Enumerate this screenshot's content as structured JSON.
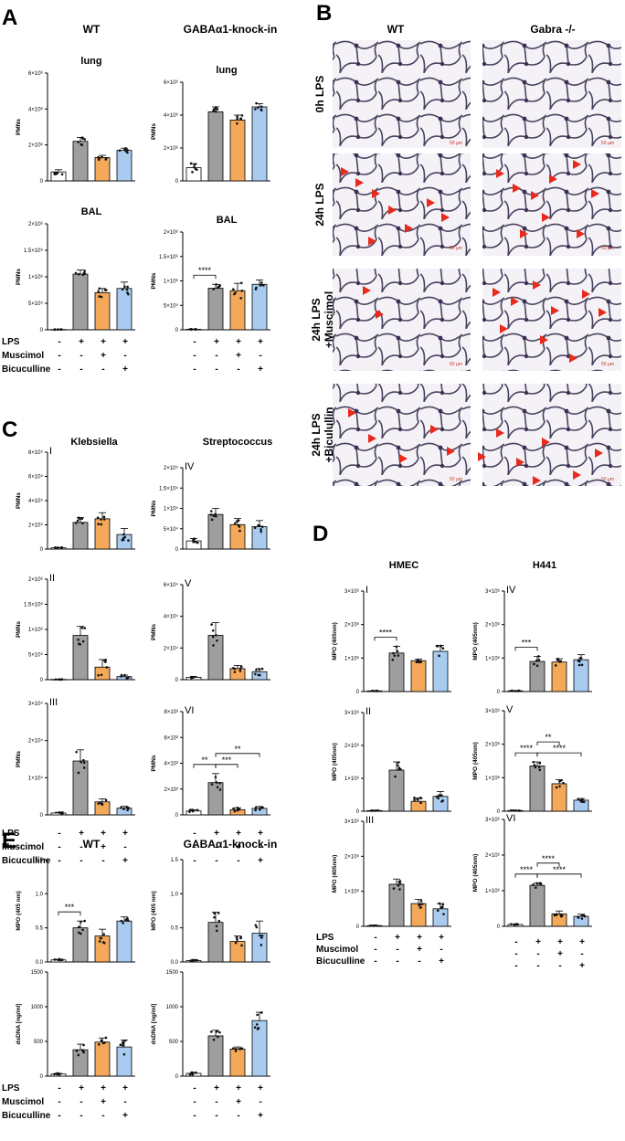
{
  "colors": {
    "white": "#ffffff",
    "gray": "#9e9e9e",
    "orange": "#f3a85a",
    "blue": "#a8cbef",
    "arrow": "#e8291c"
  },
  "panels": {
    "A": {
      "label": "A",
      "col_titles": [
        "WT",
        "GABAα1-knock-in"
      ]
    },
    "B": {
      "label": "B",
      "col_titles": [
        "WT",
        "Gabra -/-"
      ],
      "row_labels": [
        "0h LPS",
        "24h LPS",
        "24h LPS\n+Muscimol",
        "24h LPS\n+Biculullin"
      ],
      "scale_text": "50 µm"
    },
    "C": {
      "label": "C",
      "col_titles": [
        "Klebsiella",
        "Streptococcus"
      ]
    },
    "D": {
      "label": "D",
      "col_titles": [
        "HMEC",
        "H441"
      ]
    },
    "E": {
      "label": "E",
      "col_titles": [
        "WT",
        "GABAα1-knock-in"
      ]
    }
  },
  "treatment_table": {
    "row_labels": [
      "LPS",
      "Muscimol",
      "Bicuculline"
    ],
    "rows": [
      [
        "-",
        "+",
        "+",
        "+"
      ],
      [
        "-",
        "-",
        "+",
        "-"
      ],
      [
        "-",
        "-",
        "-",
        "+"
      ]
    ]
  },
  "chart_data": [
    {
      "id": "A-WT-lung",
      "type": "bar",
      "title": "lung",
      "ylabel": "PMNs",
      "ylim": [
        0,
        6000000
      ],
      "yticks": [
        "0",
        "2×10⁶",
        "4×10⁶",
        "6×10⁶"
      ],
      "values": [
        500000,
        2200000,
        1300000,
        1700000
      ],
      "errors": [
        120000,
        220000,
        120000,
        120000
      ],
      "sig": []
    },
    {
      "id": "A-KI-lung",
      "type": "bar",
      "title": "lung",
      "ylabel": "PMNs",
      "ylim": [
        0,
        6000000
      ],
      "yticks": [
        "0",
        "2×10⁶",
        "4×10⁶",
        "6×10⁶"
      ],
      "values": [
        800000,
        4200000,
        3700000,
        4500000
      ],
      "errors": [
        250000,
        300000,
        300000,
        200000
      ],
      "sig": []
    },
    {
      "id": "A-WT-BAL",
      "type": "bar",
      "title": "BAL",
      "ylabel": "PMNs",
      "ylim": [
        0,
        2000000
      ],
      "yticks": [
        "0",
        "5×10⁵",
        "1×10⁶",
        "1.5×10⁶",
        "2×10⁶"
      ],
      "values": [
        5000,
        1050000,
        700000,
        780000
      ],
      "errors": [
        3000,
        80000,
        80000,
        120000
      ],
      "sig": []
    },
    {
      "id": "A-KI-BAL",
      "type": "bar",
      "title": "BAL",
      "ylabel": "PMNs",
      "ylim": [
        0,
        2000000
      ],
      "yticks": [
        "0",
        "5×10⁵",
        "1×10⁶",
        "1.5×10⁶",
        "2×10⁶"
      ],
      "values": [
        10000,
        850000,
        800000,
        930000
      ],
      "errors": [
        5000,
        80000,
        150000,
        90000
      ],
      "sig": [
        {
          "a": 0,
          "b": 1,
          "label": "****",
          "level": 1
        }
      ]
    },
    {
      "id": "C-I",
      "type": "bar",
      "roman": "I",
      "ylabel": "PMNs",
      "ylim": [
        0,
        800000
      ],
      "yticks": [
        "0",
        "2×10⁵",
        "4×10⁵",
        "6×10⁵",
        "8×10⁵"
      ],
      "values": [
        10000,
        220000,
        250000,
        120000
      ],
      "errors": [
        4000,
        40000,
        50000,
        50000
      ],
      "sig": []
    },
    {
      "id": "C-IV",
      "type": "bar",
      "roman": "IV",
      "ylabel": "PMNs",
      "ylim": [
        0,
        200000
      ],
      "yticks": [
        "0",
        "5×10⁴",
        "1×10⁵",
        "1.5×10⁵",
        "2×10⁵"
      ],
      "values": [
        20000,
        85000,
        60000,
        55000
      ],
      "errors": [
        6000,
        15000,
        15000,
        15000
      ],
      "sig": []
    },
    {
      "id": "C-II",
      "type": "bar",
      "roman": "II",
      "ylabel": "PMNs",
      "ylim": [
        0,
        2000000
      ],
      "yticks": [
        "0",
        "5×10⁵",
        "1×10⁶",
        "1.5×10⁶",
        "2×10⁶"
      ],
      "values": [
        5000,
        880000,
        250000,
        60000
      ],
      "errors": [
        3000,
        180000,
        150000,
        30000
      ],
      "sig": []
    },
    {
      "id": "C-V",
      "type": "bar",
      "roman": "V",
      "ylabel": "PMNs",
      "ylim": [
        0,
        60000
      ],
      "yticks": [
        "0",
        "2×10⁴",
        "4×10⁴",
        "6×10⁴"
      ],
      "values": [
        1500,
        28000,
        7000,
        5000
      ],
      "errors": [
        500,
        8000,
        2000,
        2000
      ],
      "sig": []
    },
    {
      "id": "C-III",
      "type": "bar",
      "roman": "III",
      "ylabel": "PMNs",
      "ylim": [
        0,
        30000
      ],
      "yticks": [
        "0",
        "1×10⁴",
        "2×10⁴",
        "3×10⁴"
      ],
      "values": [
        500,
        14500,
        3500,
        1800
      ],
      "errors": [
        200,
        3000,
        800,
        500
      ],
      "sig": []
    },
    {
      "id": "C-VI",
      "type": "bar",
      "roman": "VI",
      "ylabel": "PMNs",
      "ylim": [
        0,
        8000
      ],
      "yticks": [
        "0",
        "2×10³",
        "4×10³",
        "6×10³",
        "8×10³"
      ],
      "values": [
        300,
        2500,
        400,
        500
      ],
      "errors": [
        100,
        700,
        150,
        150
      ],
      "sig": [
        {
          "a": 0,
          "b": 1,
          "label": "**",
          "level": 1
        },
        {
          "a": 1,
          "b": 2,
          "label": "***",
          "level": 1
        },
        {
          "a": 1,
          "b": 3,
          "label": "**",
          "level": 2
        }
      ]
    },
    {
      "id": "D-I",
      "type": "bar",
      "roman": "I",
      "ylabel": "MPO (405nm)",
      "ylim": [
        0,
        3000000
      ],
      "yticks": [
        "0",
        "1×10⁶",
        "2×10⁶",
        "3×10⁶"
      ],
      "values": [
        20000,
        1150000,
        920000,
        1200000
      ],
      "errors": [
        5000,
        200000,
        50000,
        180000
      ],
      "sig": [
        {
          "a": 0,
          "b": 1,
          "label": "****",
          "level": 1
        }
      ]
    },
    {
      "id": "D-IV",
      "type": "bar",
      "roman": "IV",
      "ylabel": "MPO (405nm)",
      "ylim": [
        0,
        3000000
      ],
      "yticks": [
        "0",
        "1×10⁶",
        "2×10⁶",
        "3×10⁶"
      ],
      "values": [
        20000,
        900000,
        880000,
        950000
      ],
      "errors": [
        5000,
        150000,
        100000,
        150000
      ],
      "sig": [
        {
          "a": 0,
          "b": 1,
          "label": "***",
          "level": 1
        }
      ]
    },
    {
      "id": "D-II",
      "type": "bar",
      "roman": "II",
      "ylabel": "MPO (405nm)",
      "ylim": [
        0,
        3000000
      ],
      "yticks": [
        "0",
        "1×10⁶",
        "2×10⁶",
        "3×10⁶"
      ],
      "values": [
        20000,
        1250000,
        300000,
        450000
      ],
      "errors": [
        5000,
        250000,
        100000,
        150000
      ],
      "sig": []
    },
    {
      "id": "D-V",
      "type": "bar",
      "roman": "V",
      "ylabel": "MPO (405nm)",
      "ylim": [
        0,
        3000000
      ],
      "yticks": [
        "0",
        "1×10⁶",
        "2×10⁶",
        "3×10⁶"
      ],
      "values": [
        20000,
        1350000,
        820000,
        330000
      ],
      "errors": [
        5000,
        120000,
        120000,
        50000
      ],
      "sig": [
        {
          "a": 0,
          "b": 1,
          "label": "****",
          "level": 1
        },
        {
          "a": 1,
          "b": 2,
          "label": "**",
          "level": 2
        },
        {
          "a": 1,
          "b": 3,
          "label": "****",
          "level": 1
        }
      ]
    },
    {
      "id": "D-III",
      "type": "bar",
      "roman": "III",
      "ylabel": "MPO (405nm)",
      "ylim": [
        0,
        3000000
      ],
      "yticks": [
        "0",
        "1×10⁶",
        "2×10⁶",
        "3×10⁶"
      ],
      "values": [
        20000,
        1200000,
        650000,
        500000
      ],
      "errors": [
        5000,
        150000,
        120000,
        150000
      ],
      "sig": []
    },
    {
      "id": "D-VI",
      "type": "bar",
      "roman": "VI",
      "ylabel": "MPO (405nm)",
      "ylim": [
        0,
        3000000
      ],
      "yticks": [
        "0",
        "1×10⁶",
        "2×10⁶",
        "3×10⁶"
      ],
      "values": [
        50000,
        1150000,
        350000,
        280000
      ],
      "errors": [
        10000,
        60000,
        80000,
        60000
      ],
      "sig": [
        {
          "a": 0,
          "b": 1,
          "label": "****",
          "level": 1
        },
        {
          "a": 1,
          "b": 2,
          "label": "****",
          "level": 2
        },
        {
          "a": 1,
          "b": 3,
          "label": "****",
          "level": 1
        }
      ]
    },
    {
      "id": "E-WT-MPO",
      "type": "bar",
      "ylabel": "MPO (405 nm)",
      "ylim": [
        0,
        1.5
      ],
      "yticks": [
        "0.0",
        "0.5",
        "1.0",
        "1.5"
      ],
      "values": [
        0.03,
        0.5,
        0.38,
        0.6
      ],
      "errors": [
        0.01,
        0.1,
        0.1,
        0.06
      ],
      "sig": [
        {
          "a": 0,
          "b": 1,
          "label": "***",
          "level": 1
        }
      ]
    },
    {
      "id": "E-KI-MPO",
      "type": "bar",
      "ylabel": "MPO (405 nm)",
      "ylim": [
        0,
        1.5
      ],
      "yticks": [
        "0.0",
        "0.5",
        "1.0",
        "1.5"
      ],
      "values": [
        0.02,
        0.58,
        0.3,
        0.42
      ],
      "errors": [
        0.01,
        0.15,
        0.08,
        0.18
      ],
      "sig": []
    },
    {
      "id": "E-WT-dsDNA",
      "type": "bar",
      "ylabel": "dsDNA [ng/ml]",
      "ylim": [
        0,
        1500
      ],
      "yticks": [
        "0",
        "500",
        "1000",
        "1500"
      ],
      "values": [
        30,
        380,
        490,
        420
      ],
      "errors": [
        10,
        80,
        60,
        100
      ],
      "sig": []
    },
    {
      "id": "E-KI-dsDNA",
      "type": "bar",
      "ylabel": "dsDNA [ng/ml]",
      "ylim": [
        0,
        1500
      ],
      "yticks": [
        "0",
        "500",
        "1000",
        "1500"
      ],
      "values": [
        40,
        580,
        390,
        800
      ],
      "errors": [
        15,
        80,
        30,
        120
      ],
      "sig": []
    }
  ]
}
